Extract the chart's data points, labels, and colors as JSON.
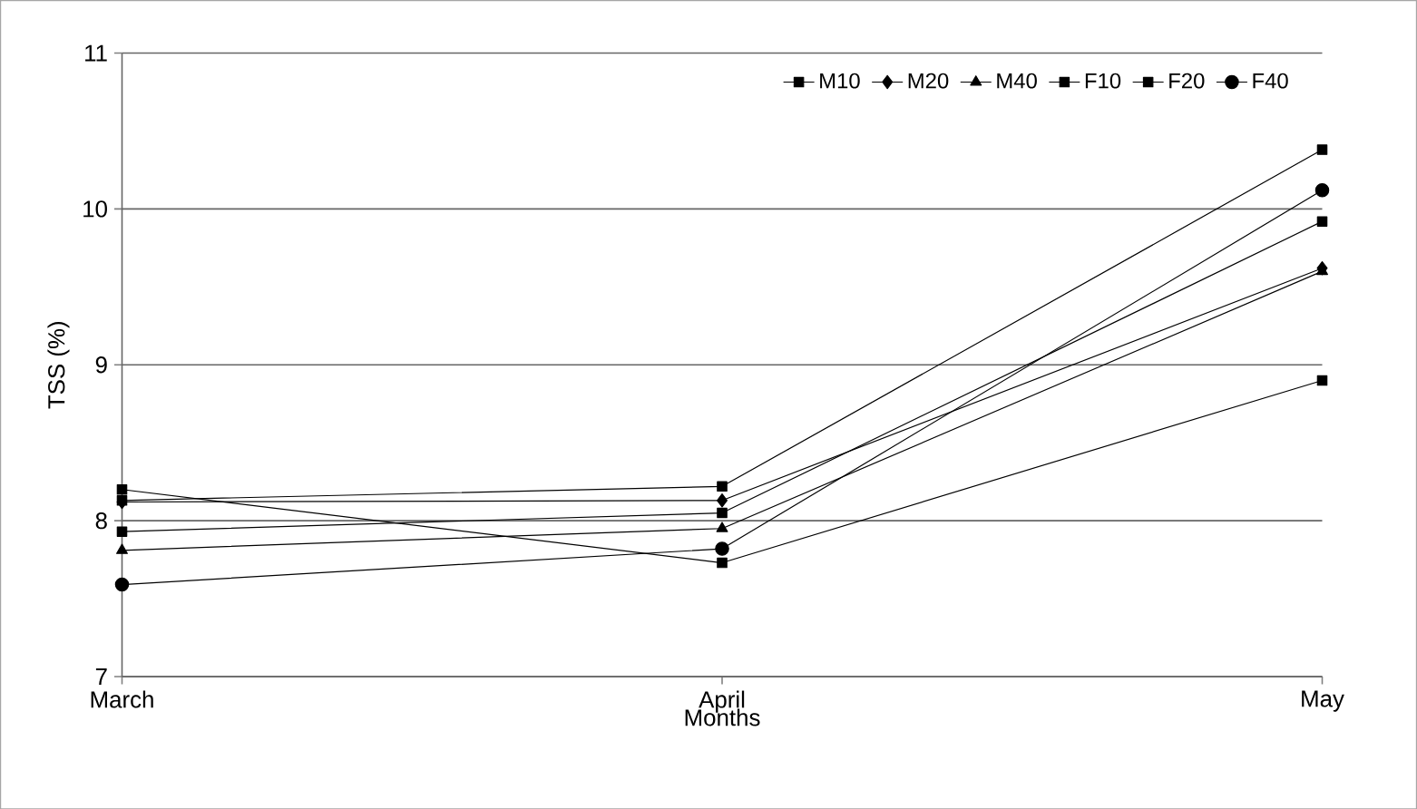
{
  "chart_data": {
    "type": "line",
    "xlabel": "Months",
    "ylabel": "TSS (%)",
    "categories": [
      "March",
      "April",
      "May"
    ],
    "ylim": [
      7,
      11
    ],
    "yticks": [
      7,
      8,
      9,
      10,
      11
    ],
    "grid": "y",
    "legend": "top right",
    "line_style": "solid",
    "series": [
      {
        "name": "M10",
        "color": "#000000",
        "marker": "square",
        "values": [
          7.93,
          8.05,
          9.92
        ]
      },
      {
        "name": "M20",
        "color": "#000000",
        "marker": "diamond",
        "values": [
          8.12,
          8.13,
          9.62
        ]
      },
      {
        "name": "M40",
        "color": "#000000",
        "marker": "triangle",
        "values": [
          7.81,
          7.95,
          9.6
        ]
      },
      {
        "name": "F10",
        "color": "#000000",
        "marker": "square",
        "values": [
          8.2,
          7.73,
          8.9
        ]
      },
      {
        "name": "F20",
        "color": "#000000",
        "marker": "square",
        "values": [
          8.13,
          8.22,
          10.38
        ]
      },
      {
        "name": "F40",
        "color": "#000000",
        "marker": "circle",
        "values": [
          7.59,
          7.82,
          10.12
        ]
      }
    ]
  }
}
